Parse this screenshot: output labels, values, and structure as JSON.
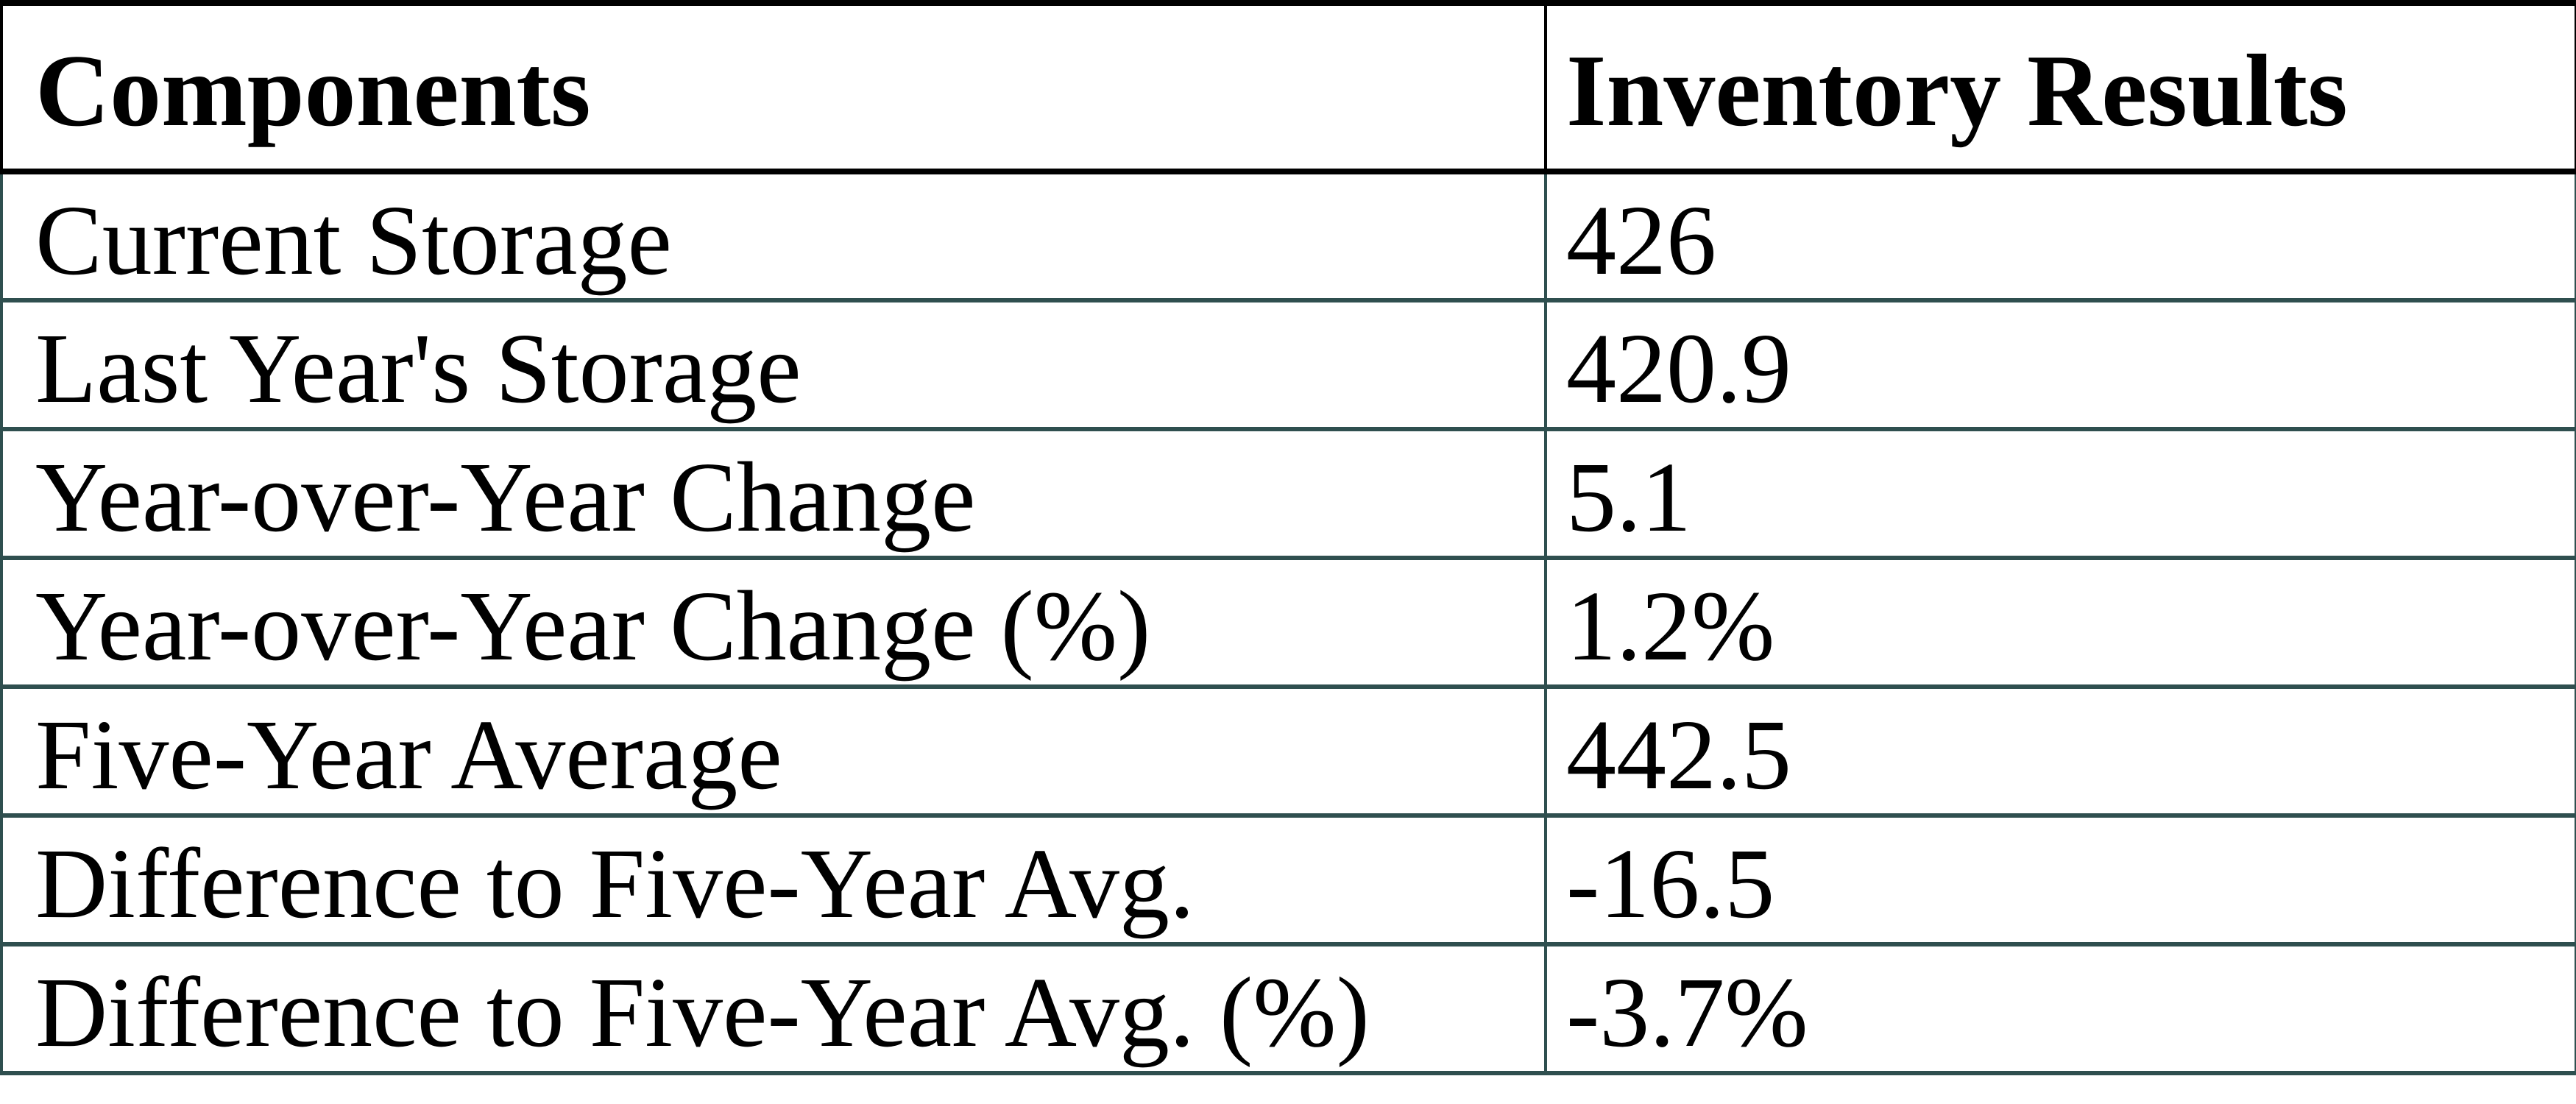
{
  "colors": {
    "background": "#ffffff",
    "text": "#000000",
    "header_border": "#000000",
    "body_border": "#2F4F4F"
  },
  "table": {
    "columns": [
      "Components",
      "Inventory Results"
    ],
    "rows": [
      {
        "label": "Current Storage",
        "value": "426"
      },
      {
        "label": "Last Year's Storage",
        "value": "420.9"
      },
      {
        "label": "Year-over-Year Change",
        "value": "5.1"
      },
      {
        "label": "Year-over-Year Change (%)",
        "value": "1.2%"
      },
      {
        "label": "Five-Year Average",
        "value": "442.5"
      },
      {
        "label": "Difference to Five-Year Avg.",
        "value": "-16.5"
      },
      {
        "label": "Difference to Five-Year Avg. (%)",
        "value": "-3.7%"
      }
    ]
  }
}
